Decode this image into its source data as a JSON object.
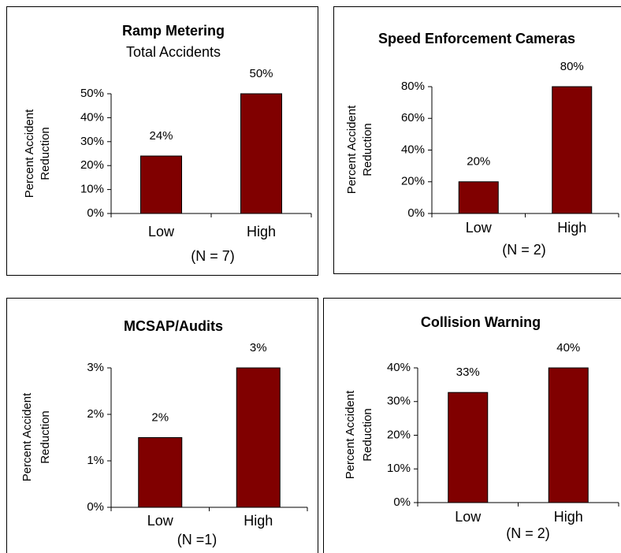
{
  "chart_data": [
    {
      "type": "bar",
      "title": "Ramp Metering",
      "subtitle": "Total Accidents",
      "ylabel": [
        "Percent Accident",
        "Reduction"
      ],
      "categories": [
        "Low",
        "High"
      ],
      "values": [
        24,
        50
      ],
      "value_labels": [
        "24%",
        "50%"
      ],
      "color": "#800000",
      "ylim": [
        0,
        50
      ],
      "yticks": [
        {
          "value": 0,
          "label": "0%"
        },
        {
          "value": 10,
          "label": "10%"
        },
        {
          "value": 20,
          "label": "20%"
        },
        {
          "value": 30,
          "label": "30%"
        },
        {
          "value": 40,
          "label": "40%"
        },
        {
          "value": 50,
          "label": "50%"
        }
      ],
      "annotation": "(N = 7)"
    },
    {
      "type": "bar",
      "title": "Speed Enforcement Cameras",
      "ylabel": [
        "Percent Accident",
        "Reduction"
      ],
      "categories": [
        "Low",
        "High"
      ],
      "values": [
        20,
        80
      ],
      "value_labels": [
        "20%",
        "80%"
      ],
      "color": "#800000",
      "ylim": [
        0,
        80
      ],
      "yticks": [
        {
          "value": 0,
          "label": "0%"
        },
        {
          "value": 20,
          "label": "20%"
        },
        {
          "value": 40,
          "label": "40%"
        },
        {
          "value": 60,
          "label": "60%"
        },
        {
          "value": 80,
          "label": "80%"
        }
      ],
      "annotation": "(N = 2)"
    },
    {
      "type": "bar",
      "title": "MCSAP/Audits",
      "ylabel": [
        "Percent Accident",
        "Reduction"
      ],
      "categories": [
        "Low",
        "High"
      ],
      "values": [
        1.5,
        3
      ],
      "value_labels": [
        "2%",
        "3%"
      ],
      "color": "#800000",
      "ylim": [
        0,
        3
      ],
      "yticks": [
        {
          "value": 0,
          "label": "0%"
        },
        {
          "value": 1,
          "label": "1%"
        },
        {
          "value": 2,
          "label": "2%"
        },
        {
          "value": 3,
          "label": "3%"
        }
      ],
      "annotation": "(N =1)"
    },
    {
      "type": "bar",
      "title": "Collision Warning",
      "ylabel": [
        "Percent Accident",
        "Reduction"
      ],
      "categories": [
        "Low",
        "High"
      ],
      "values": [
        32.7,
        40
      ],
      "value_labels": [
        "33%",
        "40%"
      ],
      "color": "#800000",
      "ylim": [
        0,
        40
      ],
      "yticks": [
        {
          "value": 0,
          "label": "0%"
        },
        {
          "value": 10,
          "label": "10%"
        },
        {
          "value": 20,
          "label": "20%"
        },
        {
          "value": 30,
          "label": "30%"
        },
        {
          "value": 40,
          "label": "40%"
        }
      ],
      "annotation": "(N = 2)"
    }
  ]
}
